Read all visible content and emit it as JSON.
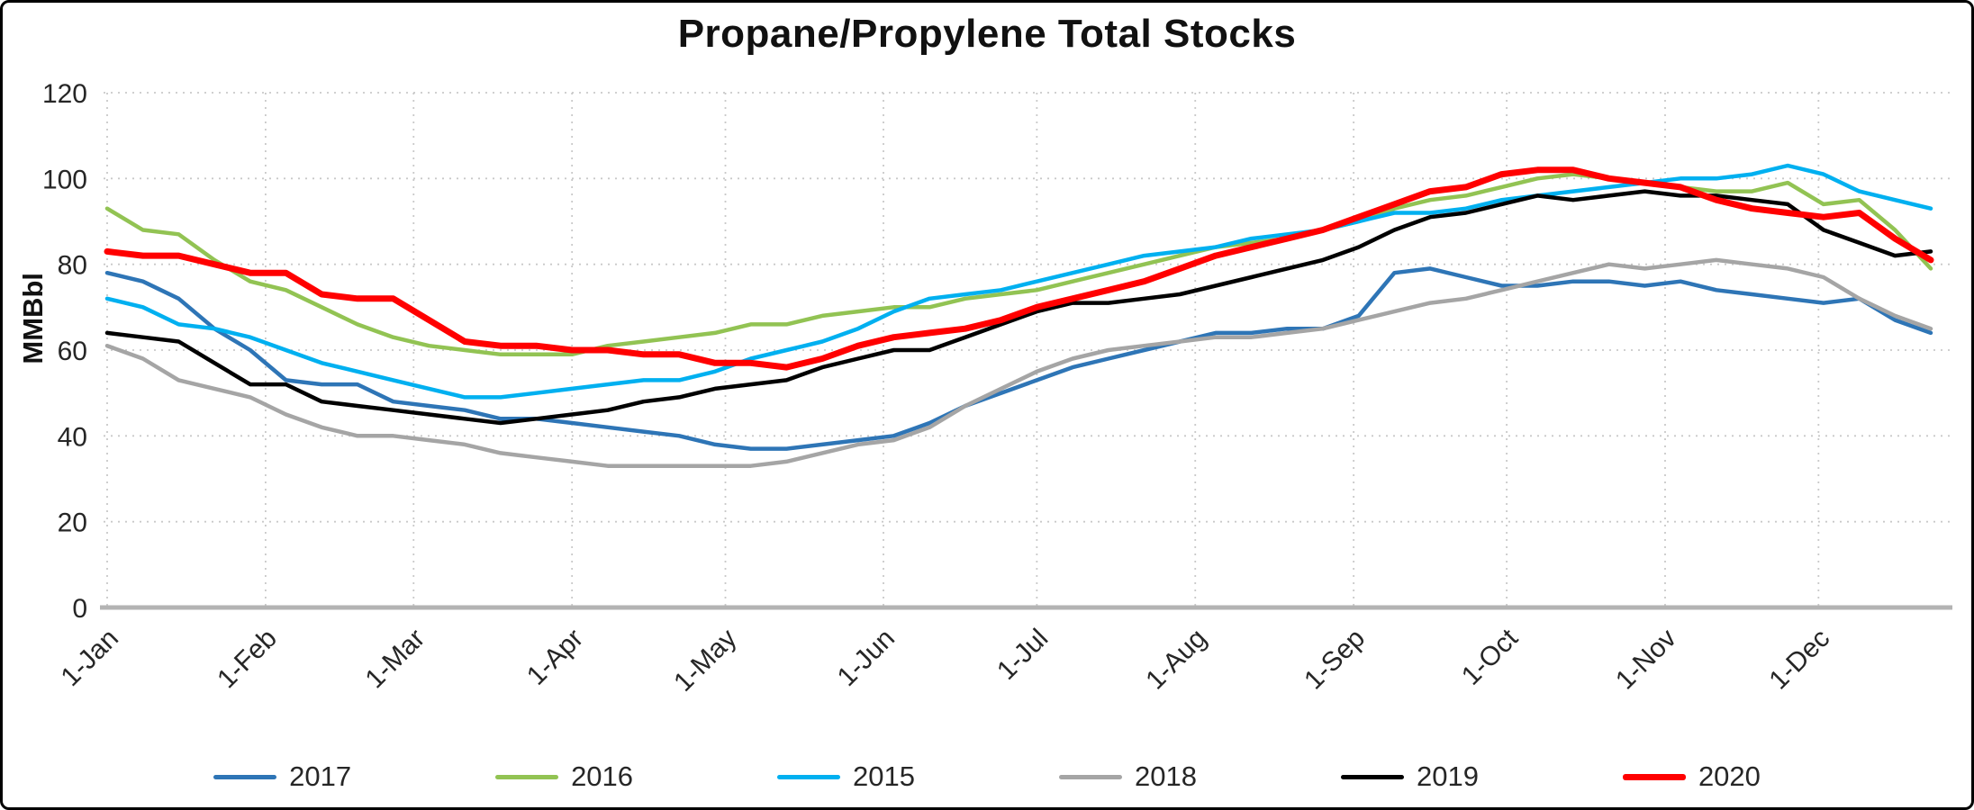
{
  "chart_data": {
    "type": "line",
    "title": "Propane/Propylene Total Stocks",
    "xlabel": "",
    "ylabel": "MMBbl",
    "ylim": [
      0,
      120
    ],
    "yticks": [
      0,
      20,
      40,
      60,
      80,
      100,
      120
    ],
    "grid": "dotted",
    "grid_color": "#c9c9c9",
    "axis_color": "#b3b3b3",
    "text_color": "#262626",
    "legend_position": "bottom",
    "x_unit": "weekly, Jan through Dec",
    "weeks_per_year": 52,
    "xtick_labels": [
      "1-Jan",
      "1-Feb",
      "1-Mar",
      "1-Apr",
      "1-May",
      "1-Jun",
      "1-Jul",
      "1-Aug",
      "1-Sep",
      "1-Oct",
      "1-Nov",
      "1-Dec"
    ],
    "xtick_week_positions": [
      0,
      4.43,
      8.57,
      13,
      17.29,
      21.71,
      26,
      30.43,
      34.86,
      39.14,
      43.57,
      47.86
    ],
    "series": [
      {
        "name": "2017",
        "color": "#2e75b6",
        "line_width": 4.5,
        "values": [
          78,
          76,
          72,
          65,
          60,
          53,
          52,
          52,
          48,
          47,
          46,
          44,
          44,
          43,
          42,
          41,
          40,
          38,
          37,
          37,
          38,
          39,
          40,
          43,
          47,
          50,
          53,
          56,
          58,
          60,
          62,
          64,
          64,
          65,
          65,
          68,
          78,
          79,
          77,
          75,
          75,
          76,
          76,
          75,
          76,
          74,
          73,
          72,
          71,
          72,
          67,
          64
        ]
      },
      {
        "name": "2016",
        "color": "#92c353",
        "line_width": 4.5,
        "values": [
          93,
          88,
          87,
          81,
          76,
          74,
          70,
          66,
          63,
          61,
          60,
          59,
          59,
          59,
          61,
          62,
          63,
          64,
          66,
          66,
          68,
          69,
          70,
          70,
          72,
          73,
          74,
          76,
          78,
          80,
          82,
          84,
          85,
          86,
          88,
          90,
          93,
          95,
          96,
          98,
          100,
          101,
          100,
          99,
          98,
          97,
          97,
          99,
          94,
          95,
          88,
          79
        ]
      },
      {
        "name": "2015",
        "color": "#00b0f0",
        "line_width": 4.5,
        "values": [
          72,
          70,
          66,
          65,
          63,
          60,
          57,
          55,
          53,
          51,
          49,
          49,
          50,
          51,
          52,
          53,
          53,
          55,
          58,
          60,
          62,
          65,
          69,
          72,
          73,
          74,
          76,
          78,
          80,
          82,
          83,
          84,
          86,
          87,
          88,
          90,
          92,
          92,
          93,
          95,
          96,
          97,
          98,
          99,
          100,
          100,
          101,
          103,
          101,
          97,
          95,
          93
        ]
      },
      {
        "name": "2018",
        "color": "#a5a5a5",
        "line_width": 4.5,
        "values": [
          61,
          58,
          53,
          51,
          49,
          45,
          42,
          40,
          40,
          39,
          38,
          36,
          35,
          34,
          33,
          33,
          33,
          33,
          33,
          34,
          36,
          38,
          39,
          42,
          47,
          51,
          55,
          58,
          60,
          61,
          62,
          63,
          63,
          64,
          65,
          67,
          69,
          71,
          72,
          74,
          76,
          78,
          80,
          79,
          80,
          81,
          80,
          79,
          77,
          72,
          68,
          65
        ]
      },
      {
        "name": "2019",
        "color": "#000000",
        "line_width": 4.5,
        "values": [
          64,
          63,
          62,
          57,
          52,
          52,
          48,
          47,
          46,
          45,
          44,
          43,
          44,
          45,
          46,
          48,
          49,
          51,
          52,
          53,
          56,
          58,
          60,
          60,
          63,
          66,
          69,
          71,
          71,
          72,
          73,
          75,
          77,
          79,
          81,
          84,
          88,
          91,
          92,
          94,
          96,
          95,
          96,
          97,
          96,
          96,
          95,
          94,
          88,
          85,
          82,
          83
        ]
      },
      {
        "name": "2020",
        "color": "#ff0000",
        "line_width": 7,
        "values": [
          83,
          82,
          82,
          80,
          78,
          78,
          73,
          72,
          72,
          67,
          62,
          61,
          61,
          60,
          60,
          59,
          59,
          57,
          57,
          56,
          58,
          61,
          63,
          64,
          65,
          67,
          70,
          72,
          74,
          76,
          79,
          82,
          84,
          86,
          88,
          91,
          94,
          97,
          98,
          101,
          102,
          102,
          100,
          99,
          98,
          95,
          93,
          92,
          91,
          92,
          86,
          81
        ]
      }
    ]
  }
}
